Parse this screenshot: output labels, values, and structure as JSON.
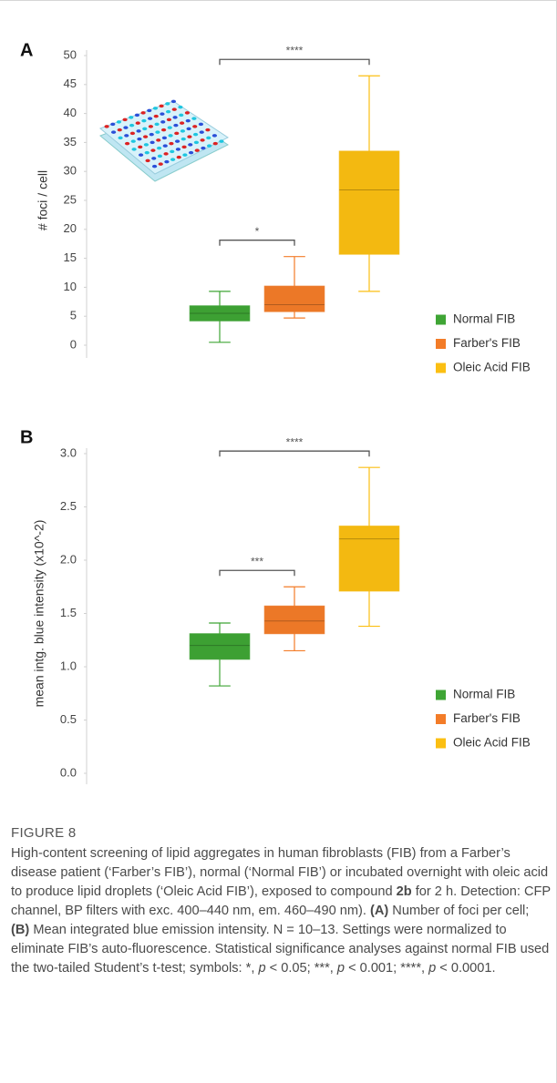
{
  "chart_data": [
    {
      "type": "box",
      "panel": "A",
      "y_label": "# foci / cell",
      "ylim": [
        0,
        50
      ],
      "yticks": [
        0,
        5,
        10,
        15,
        20,
        25,
        30,
        35,
        40,
        45,
        50
      ],
      "series": [
        {
          "name": "Normal FIB",
          "color": "#3fa535",
          "values": {
            "min": 0.5,
            "q1": 4.2,
            "median": 5.5,
            "q3": 6.8,
            "max": 9.3
          }
        },
        {
          "name": "Farber's FIB",
          "color": "#f37c28",
          "values": {
            "min": 4.7,
            "q1": 5.8,
            "median": 7,
            "q3": 10.2,
            "max": 15.3
          }
        },
        {
          "name": "Oleic Acid FIB",
          "color": "#fbbf12",
          "values": {
            "min": 9.3,
            "q1": 15.7,
            "median": 26.8,
            "q3": 33.5,
            "max": 46.5
          }
        }
      ],
      "annotations": [
        {
          "text": "****",
          "between": [
            0,
            2
          ]
        },
        {
          "text": "*",
          "between": [
            0,
            1
          ]
        }
      ]
    },
    {
      "type": "box",
      "panel": "B",
      "y_label": "mean intg. blue intensity (x10^-2)",
      "ylim": [
        0,
        3
      ],
      "yticks": [
        {
          "value": 0,
          "label": "0.0"
        },
        0.5,
        {
          "value": 1,
          "label": "1.0"
        },
        1.5,
        {
          "value": 2,
          "label": "2.0"
        },
        2.5,
        {
          "value": 3,
          "label": "3.0"
        }
      ],
      "series": [
        {
          "name": "Normal FIB",
          "color": "#3fa535",
          "values": {
            "min": 0.82,
            "q1": 1.07,
            "median": 1.2,
            "q3": 1.31,
            "max": 1.41
          }
        },
        {
          "name": "Farber's FIB",
          "color": "#f37c28",
          "values": {
            "min": 1.15,
            "q1": 1.31,
            "median": 1.43,
            "q3": 1.57,
            "max": 1.75
          }
        },
        {
          "name": "Oleic Acid FIB",
          "color": "#fbbf12",
          "values": {
            "min": 1.38,
            "q1": 1.71,
            "median": 2.2,
            "q3": 2.32,
            "max": 2.87
          }
        }
      ],
      "annotations": [
        {
          "text": "****",
          "between": [
            0,
            2
          ]
        },
        {
          "text": "***",
          "between": [
            0,
            1
          ]
        }
      ]
    }
  ],
  "figure": {
    "label": "FIGURE 8",
    "caption": [
      {
        "text": "High-content screening of lipid aggregates in human fibroblasts (FIB) from a Farber’s disease patient (‘Farber’s FIB’), normal (‘Normal FIB’) or incubated overnight with oleic acid to produce lipid droplets (‘Oleic Acid FIB’), exposed to compound ",
        "style": "normal"
      },
      {
        "text": "2b",
        "style": "bold"
      },
      {
        "text": " for 2 h. Detection: CFP channel, BP filters with exc. 400–440 nm, em. 460–490 nm). ",
        "style": "normal"
      },
      {
        "text": "(A)",
        "style": "bold"
      },
      {
        "text": " Number of foci per cell; ",
        "style": "normal"
      },
      {
        "text": "(B)",
        "style": "bold"
      },
      {
        "text": " Mean integrated blue emission intensity. N = 10–13. Settings were normalized to eliminate FIB’s auto-fluorescence. Statistical significance analyses against normal FIB used the two-tailed Student’s t-test; symbols: *, ",
        "style": "normal"
      },
      {
        "text": "p",
        "style": "italic"
      },
      {
        "text": " < 0.05; ***, ",
        "style": "normal"
      },
      {
        "text": "p",
        "style": "italic"
      },
      {
        "text": " < 0.001; ****, ",
        "style": "normal"
      },
      {
        "text": "p",
        "style": "italic"
      },
      {
        "text": " < 0.0001.",
        "style": "normal"
      }
    ]
  }
}
